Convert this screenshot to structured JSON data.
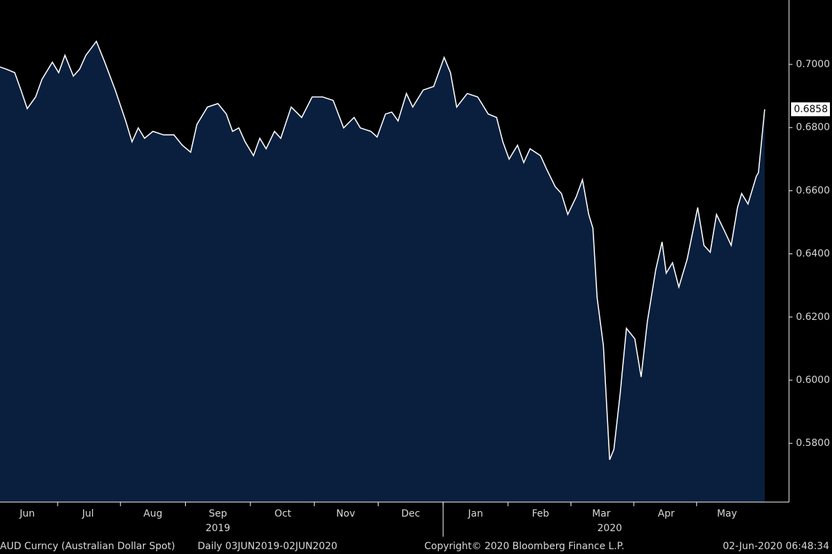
{
  "chart_data": {
    "type": "area",
    "color": "#0a1f3d",
    "line_color": "#ffffff",
    "x": [
      0,
      3,
      7,
      10,
      13,
      17,
      20,
      25,
      28,
      31,
      35,
      38,
      41,
      46,
      50,
      55,
      60,
      63,
      66,
      69,
      73,
      78,
      83,
      87,
      91,
      94,
      99,
      104,
      108,
      111,
      114,
      117,
      121,
      124,
      127,
      131,
      134,
      139,
      144,
      149,
      154,
      159,
      164,
      169,
      172,
      177,
      180,
      184,
      187,
      190,
      194,
      197,
      202,
      207,
      212,
      215,
      218,
      223,
      228,
      233,
      237,
      240,
      243,
      247,
      250,
      253,
      258,
      261,
      265,
      268,
      271,
      275,
      278,
      281,
      283,
      285,
      288,
      291,
      293,
      296,
      299,
      303,
      306,
      309,
      313,
      316,
      318,
      321,
      324,
      328,
      331,
      333,
      336,
      339,
      342,
      346,
      349,
      352,
      354,
      357,
      361,
      362,
      365
    ],
    "values": [
      0.6992,
      0.6985,
      0.6974,
      0.6919,
      0.686,
      0.6897,
      0.6952,
      0.7007,
      0.6974,
      0.7029,
      0.6963,
      0.6985,
      0.7029,
      0.7073,
      0.7007,
      0.6919,
      0.6821,
      0.6755,
      0.6799,
      0.6766,
      0.6788,
      0.6777,
      0.6777,
      0.6744,
      0.6722,
      0.681,
      0.6865,
      0.6876,
      0.6843,
      0.6788,
      0.6799,
      0.6755,
      0.6711,
      0.6766,
      0.6733,
      0.6788,
      0.6766,
      0.6865,
      0.6832,
      0.6897,
      0.6897,
      0.6886,
      0.6799,
      0.6832,
      0.6799,
      0.6788,
      0.677,
      0.6843,
      0.6849,
      0.6821,
      0.6908,
      0.6865,
      0.6919,
      0.693,
      0.7022,
      0.6974,
      0.6865,
      0.6908,
      0.6897,
      0.6843,
      0.6832,
      0.6755,
      0.67,
      0.6744,
      0.6689,
      0.6733,
      0.6711,
      0.6667,
      0.6613,
      0.6591,
      0.6525,
      0.658,
      0.6635,
      0.6525,
      0.6481,
      0.6262,
      0.6109,
      0.5748,
      0.5781,
      0.5956,
      0.6164,
      0.6131,
      0.601,
      0.6186,
      0.635,
      0.6438,
      0.6339,
      0.6372,
      0.6295,
      0.6383,
      0.6481,
      0.6547,
      0.6427,
      0.6405,
      0.6525,
      0.647,
      0.6427,
      0.6547,
      0.6591,
      0.6558,
      0.6646,
      0.6657,
      0.6858
    ],
    "xlim": [
      0,
      376.6
    ],
    "xticks": [
      {
        "value": 13,
        "label": "Jun"
      },
      {
        "value": 42,
        "label": "Jul"
      },
      {
        "value": 73,
        "label": "Aug"
      },
      {
        "value": 104,
        "label": "Sep"
      },
      {
        "value": 135,
        "label": "Oct"
      },
      {
        "value": 165,
        "label": "Nov"
      },
      {
        "value": 196,
        "label": "Dec"
      },
      {
        "value": 227,
        "label": "Jan"
      },
      {
        "value": 258,
        "label": "Feb"
      },
      {
        "value": 287,
        "label": "Mar"
      },
      {
        "value": 318,
        "label": "Apr"
      },
      {
        "value": 347,
        "label": "May"
      }
    ],
    "year_labels": [
      {
        "value": 104,
        "label": "2019"
      },
      {
        "value": 291,
        "label": "2020"
      }
    ],
    "ylim": [
      0.5614,
      0.7204
    ],
    "yticks": [
      {
        "value": 0.58,
        "label": "0.5800"
      },
      {
        "value": 0.6,
        "label": "0.6000"
      },
      {
        "value": 0.62,
        "label": "0.6200"
      },
      {
        "value": 0.64,
        "label": "0.6400"
      },
      {
        "value": 0.66,
        "label": "0.6600"
      },
      {
        "value": 0.68,
        "label": "0.6800"
      },
      {
        "value": 0.7,
        "label": "0.7000"
      }
    ],
    "footer": [
      "AUD Curncy (Australian Dollar Spot)",
      "Daily 03JUN2019-02JUN2020",
      "Copyright© 2020 Bloomberg Finance L.P.",
      "02-Jun-2020 06:48:34"
    ]
  }
}
